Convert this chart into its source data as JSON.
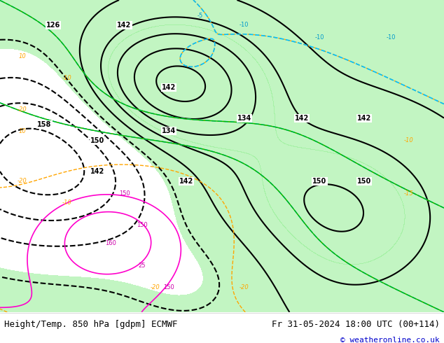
{
  "title_left": "Height/Temp. 850 hPa [gdpm] ECMWF",
  "title_right": "Fr 31-05-2024 18:00 UTC (00+114)",
  "copyright": "© weatheronline.co.uk",
  "bg_color": "#ffffff",
  "text_color": "#000000",
  "copyright_color": "#0000cc",
  "bottom_bar_color": "#ffffff",
  "fig_width": 6.34,
  "fig_height": 4.9,
  "dpi": 100,
  "map_bg": "#f0f0f0",
  "green_fill": "#90ee90",
  "gray_fill": "#aaaaaa",
  "contour_black": "#000000",
  "contour_orange": "#ffa500",
  "contour_cyan": "#00bfff",
  "contour_green": "#00cc00",
  "contour_magenta": "#ff00ff",
  "contour_red": "#ff0000",
  "label_fontsize": 8,
  "title_fontsize": 9
}
